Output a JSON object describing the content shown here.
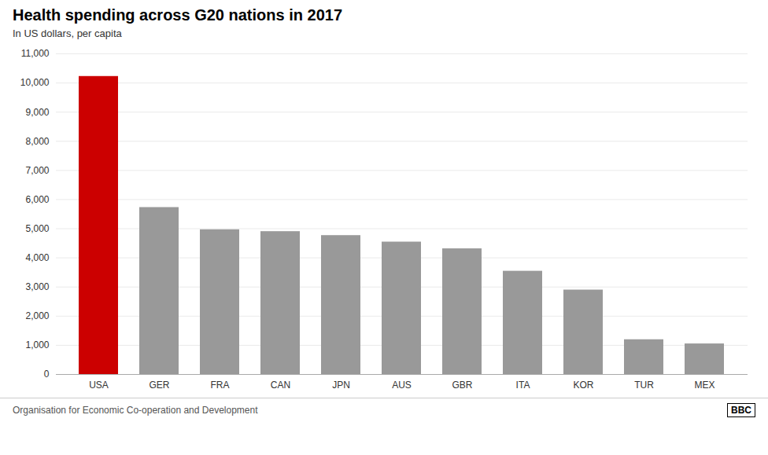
{
  "chart_data": {
    "type": "bar",
    "title": "Health spending across G20 nations in 2017",
    "subtitle": "In US dollars, per capita",
    "source": "Organisation for Economic Co-operation and Development",
    "annotations": [
      "BBC"
    ],
    "categories": [
      "USA",
      "GER",
      "FRA",
      "CAN",
      "JPN",
      "AUS",
      "GBR",
      "ITA",
      "KOR",
      "TUR",
      "MEX"
    ],
    "values": [
      10224,
      5728,
      4965,
      4902,
      4766,
      4543,
      4312,
      3542,
      2897,
      1193,
      1049
    ],
    "colors": [
      "#cc0000",
      "#999999",
      "#999999",
      "#999999",
      "#999999",
      "#999999",
      "#999999",
      "#999999",
      "#999999",
      "#999999",
      "#999999"
    ],
    "ylim": [
      0,
      11000
    ],
    "yticks": [
      0,
      {
        "value": 1000,
        "label": "1,000"
      },
      {
        "value": 2000,
        "label": "2,000"
      },
      {
        "value": 3000,
        "label": "3,000"
      },
      {
        "value": 4000,
        "label": "4,000"
      },
      {
        "value": 5000,
        "label": "5,000"
      },
      {
        "value": 6000,
        "label": "6,000"
      },
      {
        "value": 7000,
        "label": "7,000"
      },
      {
        "value": 8000,
        "label": "8,000"
      },
      {
        "value": 9000,
        "label": "9,000"
      },
      {
        "value": 10000,
        "label": "10,000"
      },
      {
        "value": 11000,
        "label": "11,000"
      }
    ],
    "grid": true
  }
}
